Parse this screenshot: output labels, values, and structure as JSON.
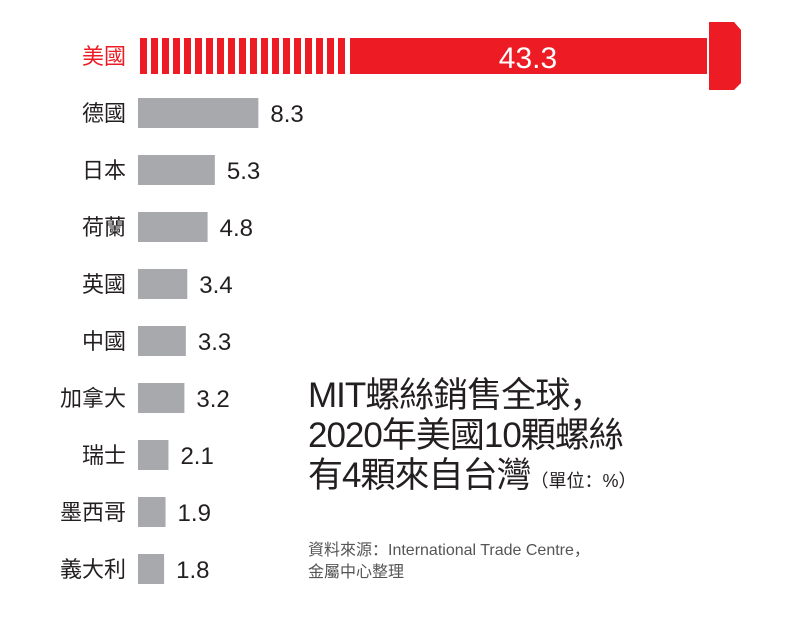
{
  "chart_data": {
    "type": "bar",
    "orientation": "horizontal",
    "title": [
      "MIT螺絲銷售全球，",
      "2020年美國10顆螺絲",
      "有4顆來自台灣"
    ],
    "unit_label": "（單位：%）",
    "categories": [
      "美國",
      "德國",
      "日本",
      "荷蘭",
      "英國",
      "中國",
      "加拿大",
      "瑞士",
      "墨西哥",
      "義大利"
    ],
    "values": [
      43.3,
      8.3,
      5.3,
      4.8,
      3.4,
      3.3,
      3.2,
      2.1,
      1.9,
      1.8
    ],
    "value_labels": [
      "43.3",
      "8.3",
      "5.3",
      "4.8",
      "3.4",
      "3.3",
      "3.2",
      "2.1",
      "1.9",
      "1.8"
    ],
    "highlight_category": "美國",
    "highlight_style": "broken bar drawn as a screw",
    "colors": {
      "highlight": "#ed1c24",
      "bar": "#a7a9ac",
      "label": "#231f20"
    },
    "grid": false,
    "legend": "none"
  },
  "source": {
    "line1": "資料來源：International Trade Centre，",
    "line2": "金屬中心整理"
  }
}
